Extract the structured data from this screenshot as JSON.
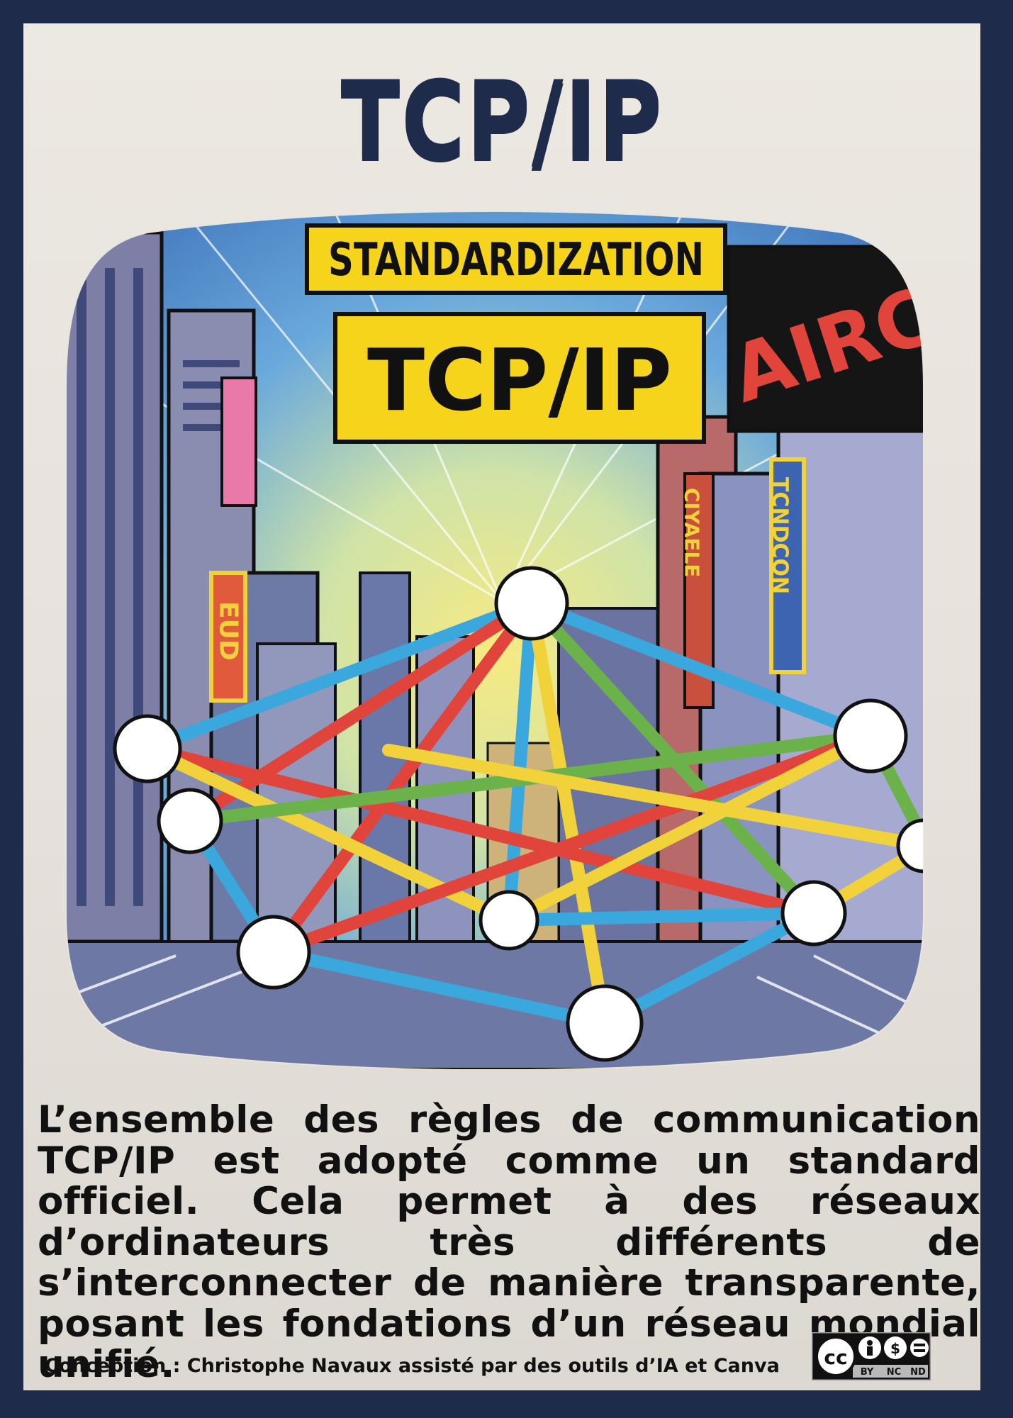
{
  "poster": {
    "title": "TCP/IP",
    "illustration": {
      "banner_top": "STANDARDIZATION",
      "banner_main": "TCP/IP",
      "sign_left": "EUD",
      "sign_right_vertical_1": "CIYAELE",
      "sign_right_vertical_2": "TCNDCON",
      "sign_billboard": "AIRCA"
    },
    "description": "L’ensemble des règles de communication TCP/IP est adopté comme un standard officiel. Cela permet à des réseaux d’ordinateurs très différents de s’interconnecter de manière transparente, posant les fondations d’un réseau mondial unifié.",
    "credit": "Conception : Christophe Navaux  assisté par des outils d’IA et Canva",
    "license": {
      "cc": "cc",
      "by": "BY",
      "nc": "NC",
      "nd": "ND"
    }
  },
  "colors": {
    "frame": "#1f2b4a",
    "paper": "#e8e4de",
    "banner_yellow": "#f6d41c",
    "link_blue": "#3aa8dc",
    "link_red": "#e0443a",
    "link_yellow": "#f2d23a",
    "link_green": "#6cb24a"
  }
}
